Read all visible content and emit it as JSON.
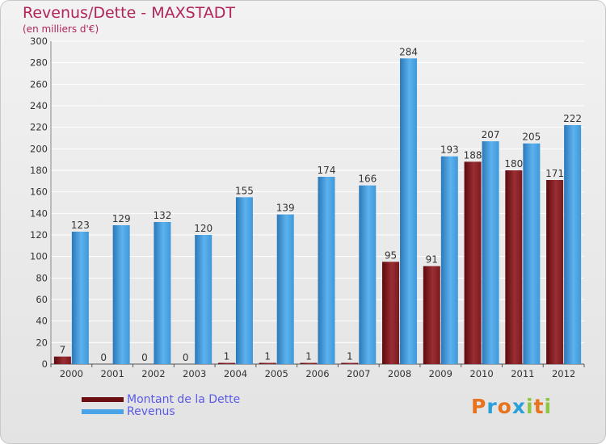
{
  "header": {
    "title": "Revenus/Dette - MAXSTADT",
    "subtitle": "(en milliers d'€)"
  },
  "chart_data": {
    "type": "bar",
    "title": "Revenus/Dette - MAXSTADT",
    "ylabel": "(en milliers d'€)",
    "xlabel": "",
    "ylim": [
      0,
      300
    ],
    "ytick_step": 20,
    "grid": true,
    "categories": [
      "2000",
      "2001",
      "2002",
      "2003",
      "2004",
      "2005",
      "2006",
      "2007",
      "2008",
      "2009",
      "2010",
      "2011",
      "2012"
    ],
    "series": [
      {
        "name": "Montant de la Dette",
        "color": "#7a1a1f",
        "values": [
          7,
          0,
          0,
          0,
          1,
          1,
          1,
          1,
          95,
          91,
          188,
          180,
          171
        ]
      },
      {
        "name": "Revenus",
        "color": "#3f98d9",
        "values": [
          123,
          129,
          132,
          120,
          155,
          139,
          174,
          166,
          284,
          193,
          207,
          205,
          222
        ]
      }
    ]
  },
  "legend": {
    "items": [
      {
        "label": "Montant de la Dette",
        "color": "#6b0f12"
      },
      {
        "label": "Revenus",
        "color": "#4aa3e6"
      }
    ]
  },
  "logo": {
    "letters": [
      "P",
      "r",
      "o",
      "x",
      "i",
      "t",
      "i"
    ],
    "colors": [
      "#e8731f",
      "#2aa0d8",
      "#e8731f",
      "#2aa0d8",
      "#8dc63f",
      "#e8731f",
      "#8dc63f"
    ]
  }
}
